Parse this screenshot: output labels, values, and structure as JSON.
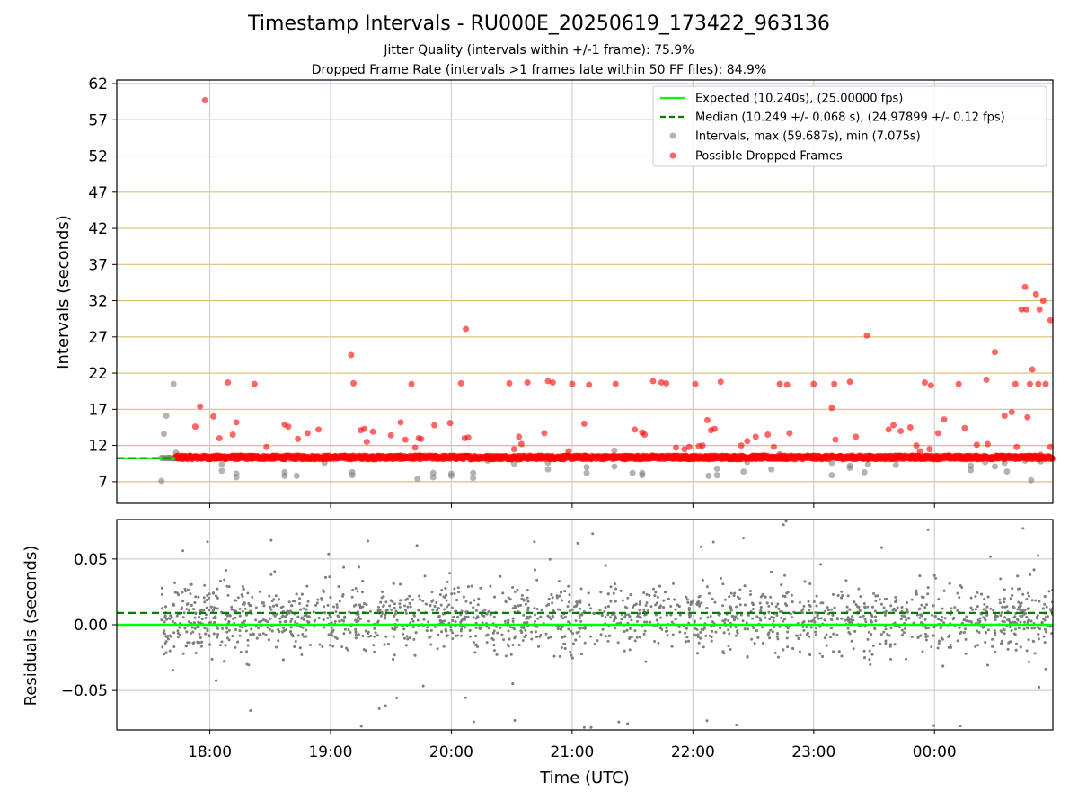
{
  "chart_data": [
    {
      "type": "scatter",
      "title": "Timestamp Intervals - RU000E_20250619_173422_963136",
      "subtitle_lines": [
        "Jitter Quality (intervals within +/-1 frame): 75.9%",
        "Dropped Frame Rate (intervals >1 frames late within 50 FF files): 84.9%"
      ],
      "ylabel": "Intervals (seconds)",
      "ylim": [
        4,
        62.5
      ],
      "yticks": [
        7,
        12,
        17,
        22,
        27,
        32,
        37,
        42,
        47,
        52,
        57,
        62
      ],
      "ytick_labels": [
        "7",
        "12",
        "17",
        "22",
        "27",
        "32",
        "37",
        "42",
        "47",
        "52",
        "57",
        "62"
      ],
      "xlim_hours": [
        17.23,
        24.98
      ],
      "vertical_grid_hours": [
        18,
        19,
        20,
        21,
        22,
        23,
        24
      ],
      "horizontal_grid": "tan, at every y tick",
      "legend_position": "top-right",
      "legend": [
        "Expected (10.240s), (25.00000 fps)",
        "Median (10.249 +/- 0.068 s), (24.97899 +/- 0.12 fps)",
        "Intervals, max (59.687s), min (7.075s)",
        "Possible Dropped Frames"
      ],
      "expected_interval": 10.24,
      "median_interval": 10.249,
      "baseline_line_range_hours": [
        17.23,
        17.72
      ],
      "series": [
        {
          "name": "Possible Dropped Frames",
          "color": "#ff0000",
          "band": {
            "x_range_hours": [
              17.72,
              24.98
            ],
            "y_range": [
              10.1,
              10.6
            ]
          },
          "points": [
            [
              17.96,
              59.7
            ],
            [
              17.92,
              17.4
            ],
            [
              17.88,
              14.6
            ],
            [
              18.03,
              16.0
            ],
            [
              18.08,
              13.0
            ],
            [
              18.15,
              20.7
            ],
            [
              18.19,
              13.5
            ],
            [
              18.22,
              15.2
            ],
            [
              18.37,
              20.5
            ],
            [
              18.47,
              11.8
            ],
            [
              18.62,
              14.9
            ],
            [
              18.65,
              14.6
            ],
            [
              18.73,
              12.9
            ],
            [
              18.81,
              13.7
            ],
            [
              18.9,
              14.2
            ],
            [
              19.17,
              24.5
            ],
            [
              19.19,
              20.6
            ],
            [
              19.25,
              14.1
            ],
            [
              19.28,
              14.3
            ],
            [
              19.3,
              12.5
            ],
            [
              19.35,
              13.9
            ],
            [
              19.5,
              13.4
            ],
            [
              19.58,
              15.2
            ],
            [
              19.62,
              12.8
            ],
            [
              19.67,
              20.5
            ],
            [
              19.7,
              11.7
            ],
            [
              19.73,
              13.0
            ],
            [
              19.75,
              12.9
            ],
            [
              19.86,
              14.8
            ],
            [
              19.99,
              15.1
            ],
            [
              20.08,
              20.6
            ],
            [
              20.12,
              28.1
            ],
            [
              20.11,
              13.0
            ],
            [
              20.14,
              13.1
            ],
            [
              20.48,
              20.6
            ],
            [
              20.52,
              11.5
            ],
            [
              20.56,
              13.2
            ],
            [
              20.58,
              12.2
            ],
            [
              20.63,
              20.7
            ],
            [
              20.77,
              13.7
            ],
            [
              20.8,
              20.9
            ],
            [
              20.84,
              20.7
            ],
            [
              20.97,
              11.2
            ],
            [
              21.0,
              20.5
            ],
            [
              21.1,
              15.0
            ],
            [
              21.14,
              20.4
            ],
            [
              21.36,
              20.5
            ],
            [
              21.52,
              14.2
            ],
            [
              21.58,
              13.8
            ],
            [
              21.6,
              13.5
            ],
            [
              21.67,
              20.9
            ],
            [
              21.74,
              20.7
            ],
            [
              21.78,
              20.6
            ],
            [
              21.86,
              11.7
            ],
            [
              21.93,
              11.5
            ],
            [
              21.97,
              11.8
            ],
            [
              22.02,
              20.5
            ],
            [
              22.05,
              11.9
            ],
            [
              22.08,
              12.0
            ],
            [
              22.12,
              15.5
            ],
            [
              22.15,
              14.1
            ],
            [
              22.18,
              14.3
            ],
            [
              22.23,
              20.8
            ],
            [
              22.4,
              12.0
            ],
            [
              22.45,
              12.6
            ],
            [
              22.52,
              13.2
            ],
            [
              22.62,
              13.5
            ],
            [
              22.67,
              11.8
            ],
            [
              22.72,
              20.5
            ],
            [
              22.78,
              20.4
            ],
            [
              22.8,
              13.7
            ],
            [
              23.0,
              20.5
            ],
            [
              23.15,
              17.2
            ],
            [
              23.17,
              20.5
            ],
            [
              23.18,
              12.8
            ],
            [
              23.3,
              20.8
            ],
            [
              23.35,
              13.2
            ],
            [
              23.44,
              27.2
            ],
            [
              23.62,
              14.2
            ],
            [
              23.66,
              14.8
            ],
            [
              23.72,
              14.0
            ],
            [
              23.8,
              14.5
            ],
            [
              23.85,
              12.0
            ],
            [
              23.88,
              11.2
            ],
            [
              23.92,
              20.7
            ],
            [
              23.97,
              20.3
            ],
            [
              23.96,
              11.5
            ],
            [
              24.03,
              13.7
            ],
            [
              24.08,
              15.6
            ],
            [
              24.2,
              20.5
            ],
            [
              24.25,
              14.4
            ],
            [
              24.35,
              12.1
            ],
            [
              24.43,
              21.1
            ],
            [
              24.44,
              12.2
            ],
            [
              24.5,
              24.9
            ],
            [
              24.58,
              16.1
            ],
            [
              24.64,
              16.6
            ],
            [
              24.67,
              20.5
            ],
            [
              24.68,
              11.8
            ],
            [
              24.75,
              33.9
            ],
            [
              24.72,
              30.8
            ],
            [
              24.76,
              30.8
            ],
            [
              24.77,
              15.9
            ],
            [
              24.79,
              20.5
            ],
            [
              24.81,
              22.5
            ],
            [
              24.84,
              32.9
            ],
            [
              24.86,
              20.5
            ],
            [
              24.87,
              30.8
            ],
            [
              24.9,
              32.0
            ],
            [
              24.92,
              20.5
            ],
            [
              24.96,
              29.3
            ],
            [
              24.96,
              11.8
            ],
            [
              24.88,
              10.7
            ]
          ]
        },
        {
          "name": "Intervals, max (59.687s), min (7.075s)",
          "color": "#808080",
          "points": [
            [
              17.6,
              7.1
            ],
            [
              17.62,
              13.6
            ],
            [
              17.64,
              16.1
            ],
            [
              17.66,
              10.3
            ],
            [
              17.7,
              20.5
            ],
            [
              17.72,
              11.0
            ],
            [
              17.75,
              10.2
            ],
            [
              18.1,
              9.4
            ],
            [
              18.1,
              8.5
            ],
            [
              18.22,
              8.1
            ],
            [
              18.22,
              7.6
            ],
            [
              18.62,
              8.3
            ],
            [
              18.62,
              7.8
            ],
            [
              18.72,
              7.8
            ],
            [
              18.95,
              9.6
            ],
            [
              19.18,
              8.3
            ],
            [
              19.18,
              7.9
            ],
            [
              19.72,
              7.4
            ],
            [
              19.85,
              8.2
            ],
            [
              19.85,
              7.6
            ],
            [
              20.0,
              8.1
            ],
            [
              20.0,
              7.8
            ],
            [
              20.18,
              7.5
            ],
            [
              20.18,
              8.2
            ],
            [
              20.3,
              9.9
            ],
            [
              20.52,
              9.5
            ],
            [
              20.55,
              10.0
            ],
            [
              20.8,
              9.6
            ],
            [
              20.8,
              8.7
            ],
            [
              21.12,
              9.0
            ],
            [
              21.12,
              8.2
            ],
            [
              21.35,
              9.1
            ],
            [
              21.35,
              11.3
            ],
            [
              21.5,
              8.2
            ],
            [
              21.58,
              8.2
            ],
            [
              21.58,
              7.9
            ],
            [
              22.13,
              7.8
            ],
            [
              22.2,
              8.8
            ],
            [
              22.2,
              7.9
            ],
            [
              22.42,
              8.4
            ],
            [
              22.45,
              9.7
            ],
            [
              22.65,
              8.7
            ],
            [
              22.72,
              10.8
            ],
            [
              22.95,
              10.6
            ],
            [
              23.15,
              9.6
            ],
            [
              23.15,
              7.9
            ],
            [
              23.3,
              9.2
            ],
            [
              23.3,
              8.9
            ],
            [
              23.42,
              8.3
            ],
            [
              23.45,
              9.4
            ],
            [
              23.68,
              9.3
            ],
            [
              23.68,
              10.6
            ],
            [
              24.3,
              9.2
            ],
            [
              24.3,
              8.6
            ],
            [
              24.42,
              9.7
            ],
            [
              24.5,
              9.1
            ],
            [
              24.58,
              9.6
            ],
            [
              24.6,
              8.4
            ],
            [
              24.75,
              9.9
            ],
            [
              24.8,
              7.2
            ],
            [
              24.88,
              9.8
            ]
          ]
        }
      ]
    },
    {
      "type": "scatter",
      "ylabel": "Residuals (seconds)",
      "xlabel": "Time (UTC)",
      "ylim": [
        -0.08,
        0.08
      ],
      "yticks": [
        -0.05,
        0.0,
        0.05
      ],
      "ytick_labels": [
        "−0.05",
        "0.00",
        "0.05"
      ],
      "xlim_hours": [
        17.23,
        24.98
      ],
      "xticks_hours": [
        18,
        19,
        20,
        21,
        22,
        23,
        24
      ],
      "xtick_labels": [
        "18:00",
        "19:00",
        "20:00",
        "21:00",
        "22:00",
        "23:00",
        "00:00"
      ],
      "expected_residual": 0.0,
      "median_residual": 0.009,
      "residuals": {
        "x_range_hours": [
          17.6,
          24.98
        ],
        "approx_point_count": 2400,
        "center": 0.005,
        "spread": 0.02,
        "range": [
          -0.08,
          0.08
        ],
        "color": "#7f7f7f"
      }
    }
  ],
  "colors": {
    "expected_line": "#00ff00",
    "median_line": "#008000",
    "dropped_frames": "#ff0000",
    "intervals": "#808080",
    "grid_vertical": "#cfcfcf",
    "grid_horizontal_top": "#d8c078"
  }
}
